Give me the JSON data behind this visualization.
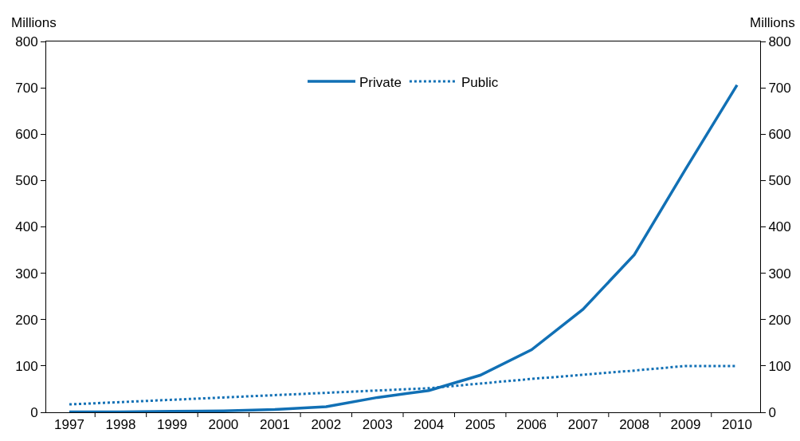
{
  "chart_data": {
    "type": "line",
    "ylabel": "Millions",
    "y2label": "Millions",
    "categories": [
      "1997",
      "1998",
      "1999",
      "2000",
      "2001",
      "2002",
      "2003",
      "2004",
      "2005",
      "2006",
      "2007",
      "2008",
      "2009",
      "2010"
    ],
    "series": [
      {
        "name": "Private",
        "color": "#1170b5",
        "line_style": "solid",
        "values": [
          1,
          1,
          2,
          3,
          6,
          12,
          32,
          47,
          80,
          135,
          222,
          340,
          525,
          706
        ]
      },
      {
        "name": "Public",
        "color": "#1170b5",
        "line_style": "dotted",
        "values": [
          17,
          22,
          27,
          32,
          37,
          42,
          47,
          52,
          62,
          72,
          81,
          90,
          100,
          100
        ]
      }
    ],
    "ylim": [
      0,
      800
    ],
    "yticks": [
      0,
      100,
      200,
      300,
      400,
      500,
      600,
      700,
      800
    ],
    "y2lim": [
      0,
      800
    ],
    "y2ticks": [
      0,
      100,
      200,
      300,
      400,
      500,
      600,
      700,
      800
    ],
    "legend": "top",
    "marker": "none"
  }
}
